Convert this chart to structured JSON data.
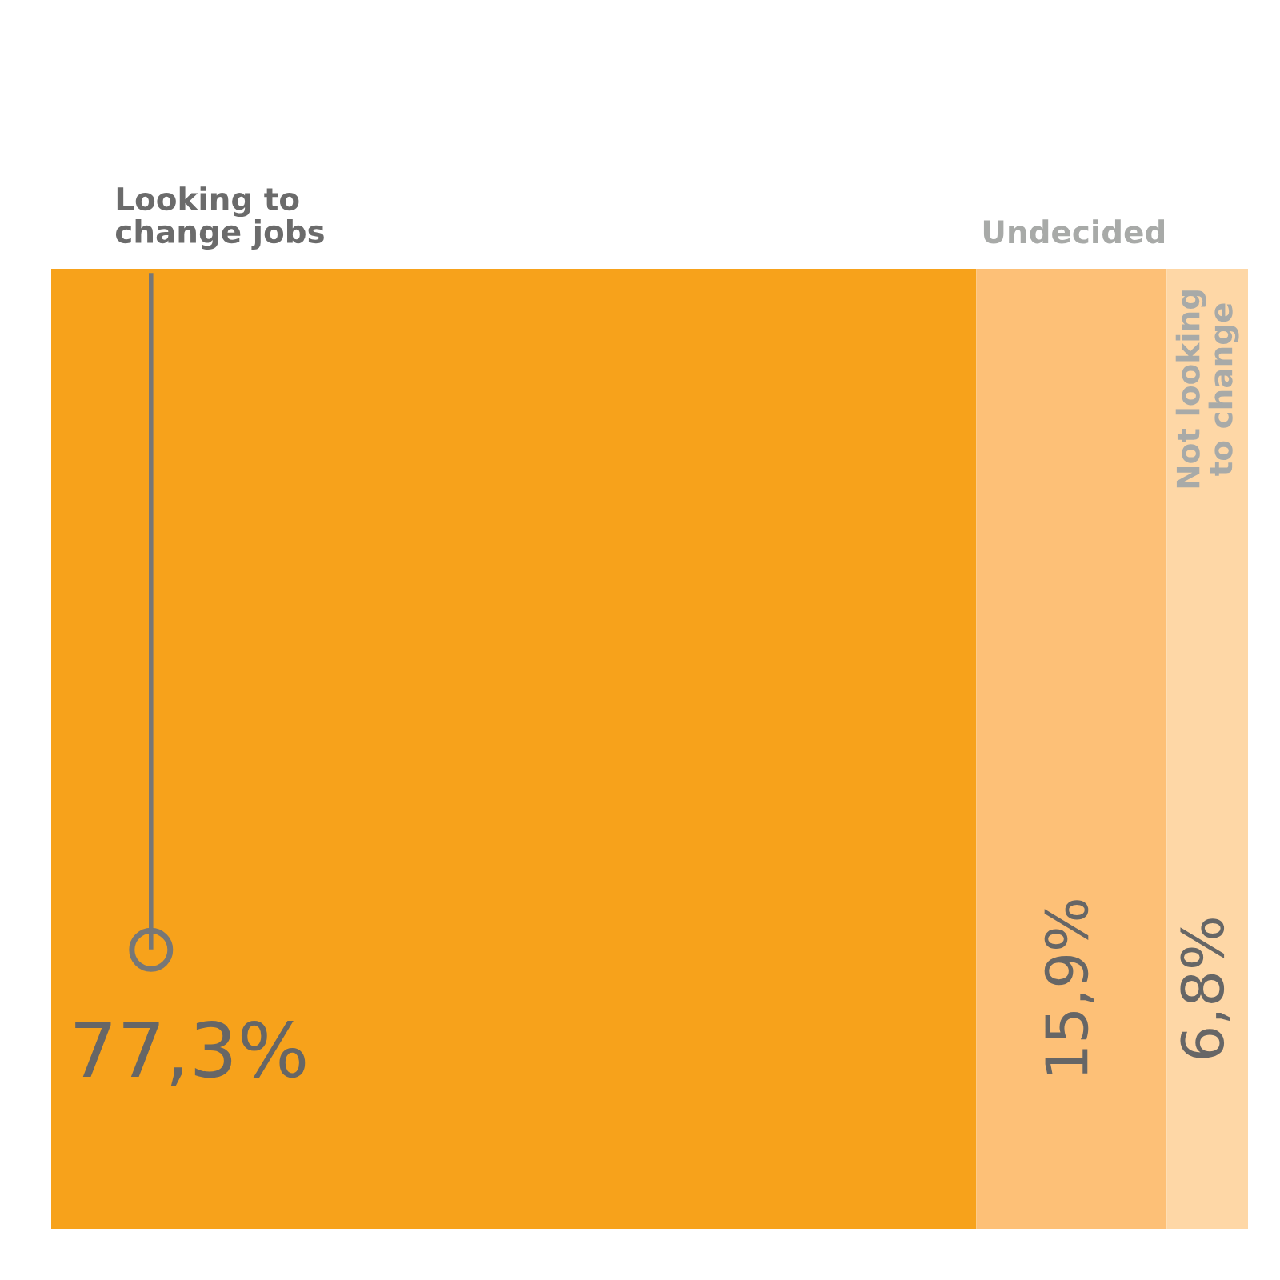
{
  "chart_data": {
    "type": "bar",
    "orientation": "horizontal",
    "stacked": true,
    "categories": [
      null
    ],
    "xlim": [
      0,
      100
    ],
    "tick_labels": false,
    "legend": false,
    "series": [
      {
        "name": "Looking to\nchange jobs",
        "color": "#f7a21b",
        "values": [
          77.3
        ],
        "value_labels": [
          "77,3%"
        ]
      },
      {
        "name": "Undecided",
        "color": "#fdc077",
        "values": [
          15.9
        ],
        "value_labels": [
          "15,9%"
        ]
      },
      {
        "name": "Not looking\nto change",
        "color": "#fed7a6",
        "values": [
          6.8
        ],
        "value_labels": [
          "6,8%"
        ]
      }
    ]
  }
}
